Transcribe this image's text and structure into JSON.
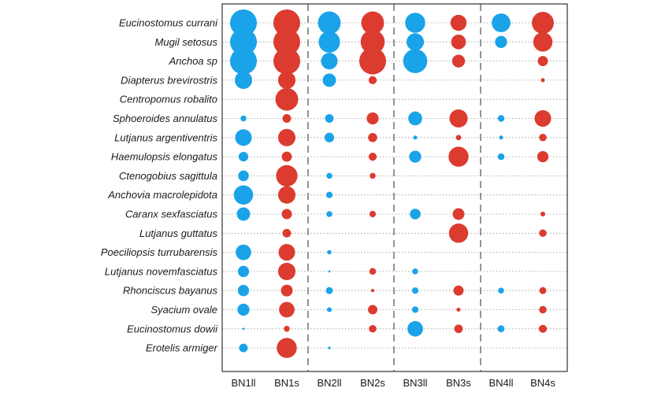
{
  "chart_data": {
    "type": "scatter",
    "subtype": "bubble-matrix",
    "title": "",
    "xlabel": "",
    "ylabel": "",
    "grid": true,
    "legend": "none",
    "colors": {
      "ll": "#1aa3e8",
      "s": "#dc3b2f",
      "grid": "#9a9a9a",
      "frame": "#333333",
      "divider": "#7a7a7a"
    },
    "columns": [
      "BN1ll",
      "BN1s",
      "BN2ll",
      "BN2s",
      "BN3ll",
      "BN3s",
      "BN4ll",
      "BN4s"
    ],
    "column_series": [
      "ll",
      "s",
      "ll",
      "s",
      "ll",
      "s",
      "ll",
      "s"
    ],
    "species": [
      "Eucinostomus currani",
      "Mugil setosus",
      "Anchoa sp",
      "Diapterus brevirostris",
      "Centropomus robalito",
      "Sphoeroides annulatus",
      "Lutjanus argentiventris",
      "Haemulopsis elongatus",
      "Ctenogobius sagittula",
      "Anchovia macrolepidota",
      "Caranx sexfasciatus",
      "Lutjanus guttatus",
      "Poeciliopsis turrubarensis",
      "Lutjanus novemfasciatus",
      "Rhonciscus bayanus",
      "Syacium ovale",
      "Eucinostomus dowii",
      "Erotelis armiger"
    ],
    "size_note": "relative bubble size (0 = absent, 1 = largest)",
    "values": [
      [
        1.0,
        1.0,
        0.85,
        0.85,
        0.75,
        0.6,
        0.7,
        0.82
      ],
      [
        1.0,
        1.0,
        0.8,
        0.9,
        0.65,
        0.55,
        0.45,
        0.72
      ],
      [
        1.0,
        1.0,
        0.62,
        1.0,
        0.9,
        0.48,
        0.0,
        0.38
      ],
      [
        0.65,
        0.65,
        0.5,
        0.3,
        0.0,
        0.0,
        0.0,
        0.15
      ],
      [
        0.0,
        0.85,
        0.0,
        0.0,
        0.0,
        0.0,
        0.0,
        0.0
      ],
      [
        0.22,
        0.32,
        0.32,
        0.45,
        0.52,
        0.68,
        0.25,
        0.62
      ],
      [
        0.62,
        0.65,
        0.36,
        0.34,
        0.15,
        0.2,
        0.15,
        0.28
      ],
      [
        0.36,
        0.38,
        0.0,
        0.3,
        0.45,
        0.75,
        0.25,
        0.42
      ],
      [
        0.4,
        0.8,
        0.22,
        0.22,
        0.0,
        0.0,
        0.0,
        0.0
      ],
      [
        0.72,
        0.65,
        0.24,
        0.0,
        0.0,
        0.0,
        0.0,
        0.0
      ],
      [
        0.5,
        0.38,
        0.22,
        0.24,
        0.4,
        0.44,
        0.0,
        0.18
      ],
      [
        0.0,
        0.32,
        0.0,
        0.0,
        0.0,
        0.72,
        0.0,
        0.28
      ],
      [
        0.58,
        0.62,
        0.16,
        0.0,
        0.0,
        0.0,
        0.0,
        0.0
      ],
      [
        0.42,
        0.65,
        0.08,
        0.25,
        0.22,
        0.0,
        0.0,
        0.0
      ],
      [
        0.42,
        0.44,
        0.26,
        0.12,
        0.24,
        0.38,
        0.22,
        0.26
      ],
      [
        0.45,
        0.58,
        0.18,
        0.35,
        0.24,
        0.15,
        0.0,
        0.28
      ],
      [
        0.08,
        0.22,
        0.0,
        0.28,
        0.58,
        0.32,
        0.26,
        0.3
      ],
      [
        0.32,
        0.75,
        0.1,
        0.0,
        0.0,
        0.0,
        0.0,
        0.0
      ]
    ]
  }
}
